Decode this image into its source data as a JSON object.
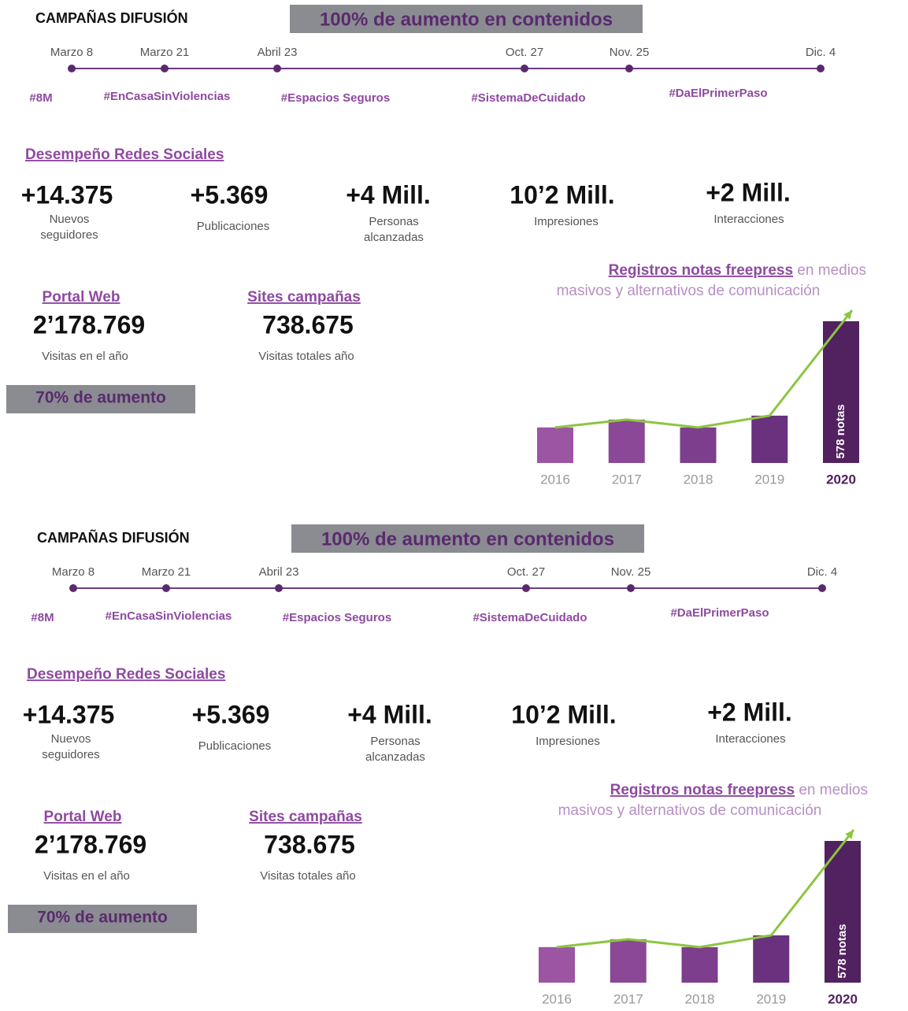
{
  "panels": [
    {
      "campaigns_title": "CAMPAÑAS DIFUSIÓN",
      "content_badge": "100% de aumento en contenidos",
      "timeline": [
        {
          "date": "Marzo 8",
          "tag": "#8M"
        },
        {
          "date": "Marzo 21",
          "tag": "#EnCasaSinViolencias"
        },
        {
          "date": "Abril 23",
          "tag": "#Espacios Seguros"
        },
        {
          "date": "Oct. 27",
          "tag": "#SistemaDeCuidado"
        },
        {
          "date": "Nov. 25",
          "tag": "#DaElPrimerPaso"
        },
        {
          "date": "Dic. 4"
        }
      ],
      "social_title": "Desempeño Redes Sociales",
      "social_stats": [
        {
          "value": "+14.375",
          "label": [
            "Nuevos",
            "seguidores"
          ]
        },
        {
          "value": "+5.369",
          "label": [
            "Publicaciones"
          ]
        },
        {
          "value": "+4 Mill.",
          "label": [
            "Personas",
            "alcanzadas"
          ]
        },
        {
          "value": "10’2 Mill.",
          "label": [
            "Impresiones"
          ]
        },
        {
          "value": "+2 Mill.",
          "label": [
            "Interacciones"
          ]
        }
      ],
      "web_stats": [
        {
          "title": "Portal Web",
          "value": "2’178.769",
          "label": "Visitas en el año"
        },
        {
          "title": "Sites campañas",
          "value": "738.675",
          "label": "Visitas totales año"
        }
      ],
      "web_badge": "70% de aumento",
      "chart_data": {
        "type": "bar",
        "title": [
          "Registros notas freepress",
          " en medios",
          "masivos y alternativos de comunicación"
        ],
        "categories": [
          "2016",
          "2017",
          "2018",
          "2019",
          "2020"
        ],
        "values": [
          145,
          177,
          145,
          193,
          578
        ],
        "value_labels": [
          null,
          null,
          null,
          null,
          "578 notas"
        ],
        "colors": [
          "#9b55a3",
          "#8a4897",
          "#7d3f8d",
          "#6a317e",
          "#52215f"
        ],
        "line_color": "#8cc63f"
      }
    },
    {
      "campaigns_title": "CAMPAÑAS DIFUSIÓN",
      "content_badge": "100% de aumento en contenidos",
      "timeline": [
        {
          "date": "Marzo 8",
          "tag": "#8M"
        },
        {
          "date": "Marzo 21",
          "tag": "#EnCasaSinViolencias"
        },
        {
          "date": "Abril 23",
          "tag": "#Espacios Seguros"
        },
        {
          "date": "Oct. 27",
          "tag": "#SistemaDeCuidado"
        },
        {
          "date": "Nov. 25",
          "tag": "#DaElPrimerPaso"
        },
        {
          "date": "Dic. 4"
        }
      ],
      "social_title": "Desempeño Redes Sociales",
      "social_stats": [
        {
          "value": "+14.375",
          "label": [
            "Nuevos",
            "seguidores"
          ]
        },
        {
          "value": "+5.369",
          "label": [
            "Publicaciones"
          ]
        },
        {
          "value": "+4 Mill.",
          "label": [
            "Personas",
            "alcanzadas"
          ]
        },
        {
          "value": "10’2 Mill.",
          "label": [
            "Impresiones"
          ]
        },
        {
          "value": "+2 Mill.",
          "label": [
            "Interacciones"
          ]
        }
      ],
      "web_stats": [
        {
          "title": "Portal Web",
          "value": "2’178.769",
          "label": "Visitas en el año"
        },
        {
          "title": "Sites campañas",
          "value": "738.675",
          "label": "Visitas totales año"
        }
      ],
      "web_badge": "70% de aumento",
      "chart_data": {
        "type": "bar",
        "title": [
          "Registros notas freepress",
          " en medios",
          "masivos y alternativos de comunicación"
        ],
        "categories": [
          "2016",
          "2017",
          "2018",
          "2019",
          "2020"
        ],
        "values": [
          145,
          177,
          145,
          193,
          578
        ],
        "value_labels": [
          null,
          null,
          null,
          null,
          "578 notas"
        ],
        "colors": [
          "#9b55a3",
          "#8a4897",
          "#7d3f8d",
          "#6a317e",
          "#52215f"
        ],
        "line_color": "#8cc63f"
      }
    }
  ]
}
